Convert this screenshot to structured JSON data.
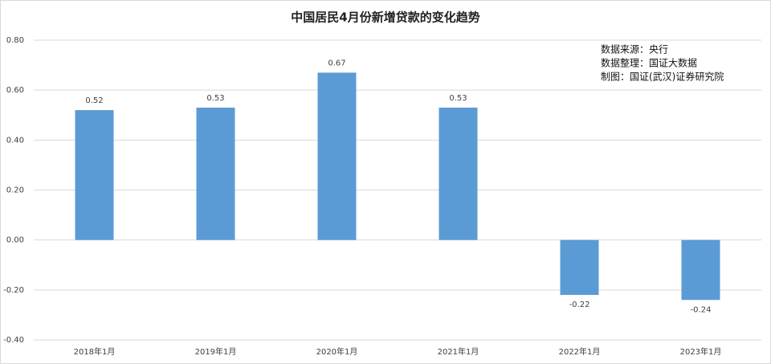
{
  "chart_data": {
    "type": "bar",
    "title": "中国居民4月份新增贷款的变化趋势",
    "categories": [
      "2018年1月",
      "2019年1月",
      "2020年1月",
      "2021年1月",
      "2022年1月",
      "2023年1月"
    ],
    "values": [
      0.52,
      0.53,
      0.67,
      0.53,
      -0.22,
      -0.24
    ],
    "color": "#5b9bd5",
    "ylim": [
      -0.4,
      0.8
    ],
    "yticks": [
      {
        "value": -0.4,
        "label": "-0.40"
      },
      {
        "value": -0.2,
        "label": "-0.20"
      },
      {
        "value": 0,
        "label": "0.00"
      },
      {
        "value": 0.2,
        "label": "0.20"
      },
      {
        "value": 0.4,
        "label": "0.40"
      },
      {
        "value": 0.6,
        "label": "0.60"
      },
      {
        "value": 0.8,
        "label": "0.80"
      }
    ],
    "grid": true,
    "annotations": [
      "数据来源：央行",
      "数据整理：国证大数据",
      "制图：国证(武汉)证券研究院"
    ]
  }
}
